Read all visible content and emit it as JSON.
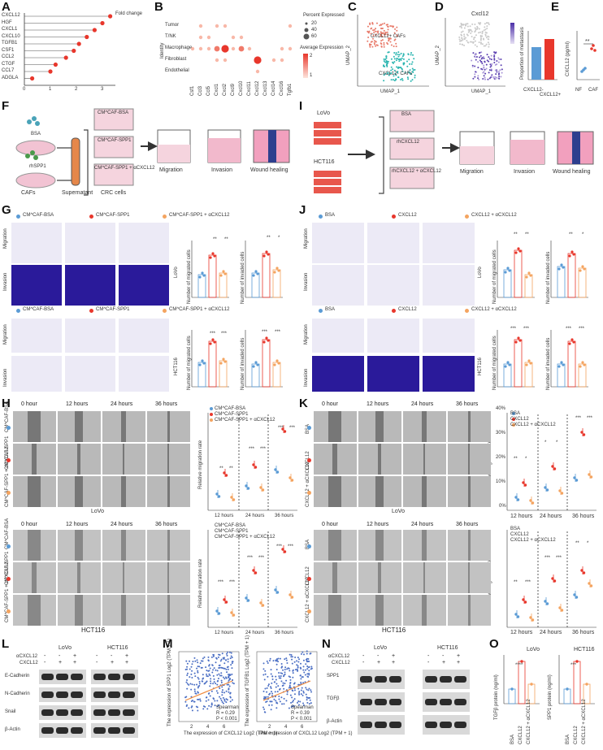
{
  "panels": {
    "A": "A",
    "B": "B",
    "C": "C",
    "D": "D",
    "E": "E",
    "F": "F",
    "G": "G",
    "H": "H",
    "I": "I",
    "J": "J",
    "K": "K",
    "L": "L",
    "M": "M",
    "N": "N",
    "O": "O"
  },
  "panel_a": {
    "axis_title": "Fold change",
    "genes": [
      "CXCL12",
      "HGF",
      "CXCL1",
      "CXCL10",
      "TGFB1",
      "CSF1",
      "CCL2",
      "CTGF",
      "CCL7",
      "ADGLA"
    ],
    "values": [
      3.3,
      3.0,
      2.7,
      2.4,
      2.1,
      1.9,
      1.6,
      1.2,
      1.0,
      0.3
    ],
    "ticks": [
      "0",
      "1",
      "2",
      "3"
    ]
  },
  "panel_b": {
    "rows": [
      "Tumor",
      "T/NK",
      "Macrophage",
      "Fibroblast",
      "Endothelial"
    ],
    "cols": [
      "Csf1",
      "Ccl3",
      "Ccl5",
      "Cxcl1",
      "Cxcl2",
      "Cxcl9",
      "Cxcl10",
      "Cxcl11",
      "Cxcl12",
      "Cxcl13",
      "Cxcl14",
      "Cxcl16",
      "Tgfb1"
    ],
    "legend_size_title": "Percent Expressed",
    "legend_sizes": [
      "20",
      "40",
      "60"
    ],
    "legend_color_title": "Average Expression",
    "legend_color_ticks": [
      "2",
      "1"
    ],
    "y_title": "Identity"
  },
  "panel_c": {
    "clusters": [
      "CXCL12+ CAFs",
      "CXCL12- CAFs"
    ],
    "xlabel": "UMAP_1",
    "ylabel": "UMAP_2"
  },
  "panel_d": {
    "title": "Cxcl12",
    "xlabel": "UMAP_1",
    "ylabel": "UMAP_2"
  },
  "panel_e1": {
    "ylabel": "Proportion of metastasis",
    "categories": [
      "CXCL12-",
      "CXCL12+"
    ],
    "values": [
      0.4,
      0.5
    ]
  },
  "panel_e2": {
    "ylabel": "CXCL12 (pg/ml)",
    "categories": [
      "NF",
      "CAF"
    ],
    "sig": "**"
  },
  "panel_f": {
    "items": [
      "BSA",
      "rhSPP1"
    ],
    "caf_label": "CAFs",
    "supernatant_label": "Supernatant",
    "crc_label": "CRC cells",
    "dishes": [
      "CM^CAF-BSA",
      "CM^CAF-SPP1",
      "CM^CAF-SPP1 + αCXCL12"
    ],
    "assays": [
      "Migration",
      "Invasion",
      "Wound healing"
    ]
  },
  "panel_i": {
    "cells": [
      "LoVo",
      "HCT116"
    ],
    "dishes": [
      "BSA",
      "rhCXCL12",
      "rhCXCL12 + αCXCL12"
    ],
    "assays": [
      "Migration",
      "Invasion",
      "Wound healing"
    ]
  },
  "panel_g": {
    "legend": [
      "CM^CAF-BSA",
      "CM^CAF-SPP1",
      "CM^CAF-SPP1 + αCXCL12"
    ],
    "legend_b": [
      "CM^CAF-BSA",
      "CM^CAF-SPP1",
      "CM^CAF-SPP1 + αCXCL12"
    ],
    "rows": [
      "Migration",
      "Invasion"
    ],
    "cell_top": "LoVo",
    "cell_bottom": "HCT116",
    "y1": "Number of migrated cells",
    "y2": "Number of invaded cells",
    "sig_top": [
      "**",
      "**",
      "**",
      "*"
    ],
    "sig_bottom": [
      "***",
      "***",
      "***",
      "***"
    ]
  },
  "panel_j": {
    "legend": [
      "BSA",
      "CXCL12",
      "CXCL12 + αCXCL12"
    ],
    "rows": [
      "Migration",
      "Invasion"
    ],
    "cell_top": "LoVo",
    "cell_bottom": "HCT116",
    "y1": "Number of migrated cells",
    "y2": "Number of invaded cells",
    "sig_top": [
      "**",
      "**",
      "**",
      "*"
    ],
    "sig_bottom": [
      "***",
      "***",
      "***",
      "***"
    ]
  },
  "panel_h": {
    "timepoints": [
      "0 hour",
      "12 hours",
      "24 hours",
      "36 hours"
    ],
    "rows": [
      "CM^CAF-BSA",
      "CM^CAF-SPP1",
      "CM^CAF-SPP1 + αCXCL12"
    ],
    "cell_top": "LoVo",
    "cell_bottom": "HCT116",
    "legend": [
      "CM^CAF-BSA",
      "CM^CAF-SPP1",
      "CM^CAF-SPP1 + αCXCL12"
    ],
    "ylabel": "Relative migration rate",
    "x_groups": [
      "12 hours",
      "24 hours",
      "36 hours"
    ],
    "sig_top": [
      "**",
      "**",
      "***",
      "***",
      "***",
      "***"
    ],
    "sig_bottom": [
      "***",
      "***",
      "***",
      "***",
      "***",
      "***"
    ]
  },
  "panel_k": {
    "timepoints": [
      "0 hour",
      "12 hours",
      "24 hours",
      "36 hours"
    ],
    "rows": [
      "BSA",
      "CXCL12",
      "CXCL12 + αCXCL12"
    ],
    "cell_top": "LoVo",
    "cell_bottom": "HCT116",
    "legend": [
      "BSA",
      "CXCL12",
      "CXCL12 + αCXCL12"
    ],
    "ylabel": "Relative migration rate",
    "x_groups": [
      "12 hours",
      "24 hours",
      "36 hours"
    ],
    "yticks": [
      "40%",
      "30%",
      "20%",
      "10%",
      "0%"
    ],
    "sig_top": [
      "**",
      "*",
      "*",
      "*",
      "***",
      "***"
    ],
    "sig_bottom": [
      "**",
      "***",
      "***",
      "***",
      "**",
      "*"
    ]
  },
  "panel_l": {
    "cells": [
      "LoVo",
      "HCT116"
    ],
    "row_labels": [
      "αCXCL12",
      "CXCL12"
    ],
    "signs_a": [
      "-",
      "-",
      "+"
    ],
    "signs_b": [
      "-",
      "+",
      "+"
    ],
    "proteins": [
      "E-Cadherin",
      "N-Cadherin",
      "Snail",
      "β-Actin"
    ]
  },
  "panel_m": {
    "plots": [
      {
        "ylabel": "The expression of SPP1 Log2 (TPM + 1)",
        "xlabel": "The expression of CXCL12 Log2 (TPM + 1)",
        "stats": [
          "Spearman",
          "R = 0.29",
          "P < 0.001"
        ],
        "xticks": [
          "2",
          "4",
          "6"
        ]
      },
      {
        "ylabel": "The expression of TGFB1 Log2 (TPM + 1)",
        "xlabel": "The expression of CXCL12 Log2 (TPM + 1)",
        "stats": [
          "Spearman",
          "R = 0.39",
          "P < 0.001"
        ],
        "xticks": [
          "2",
          "4",
          "6"
        ]
      }
    ]
  },
  "panel_n": {
    "cells": [
      "LoVo",
      "HCT116"
    ],
    "row_labels": [
      "αCXCL12",
      "CXCL12"
    ],
    "signs_a": [
      "-",
      "-",
      "+"
    ],
    "signs_b": [
      "-",
      "+",
      "+"
    ],
    "proteins": [
      "SPP1",
      "TGFβ",
      "β-Actin"
    ]
  },
  "panel_o": {
    "titles": [
      "LoVo",
      "HCT116"
    ],
    "ylabels": [
      "TGFβ protein (ng/ml)",
      "SPP1 protein (ng/ml)"
    ],
    "categories": [
      "BSA",
      "CXCL12",
      "CXCL12 + αCXCL12"
    ],
    "sig": [
      "****",
      "***"
    ]
  },
  "colors": {
    "blue": "#5b9bd5",
    "red": "#e8372c",
    "orange": "#f4a460",
    "stain": "#2a1a9a",
    "wound": "#8d8d8d"
  }
}
